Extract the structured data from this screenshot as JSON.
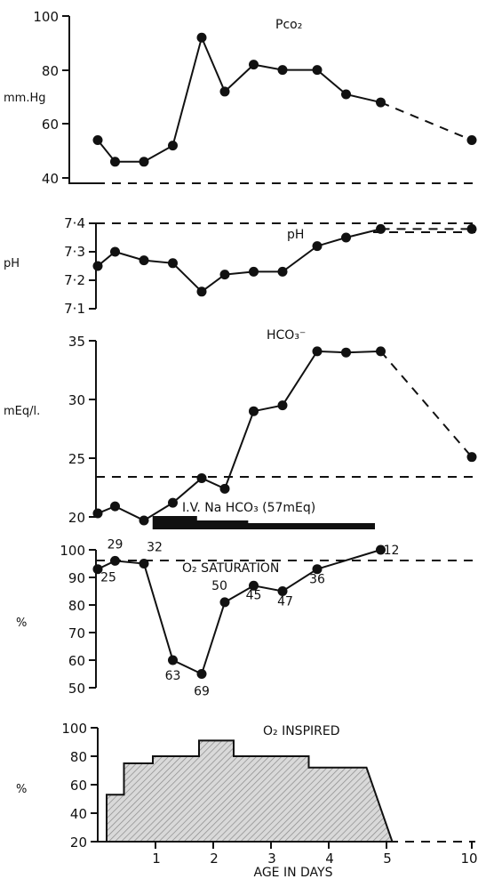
{
  "xlabel": "AGE IN DAYS",
  "x_ticks": [
    "1",
    "2",
    "3",
    "4",
    "5",
    "10"
  ],
  "chart_data": [
    {
      "type": "line",
      "title": "Pco₂",
      "ylabel": "mm.Hg",
      "ylim": [
        40,
        100
      ],
      "y_ticks": [
        "40",
        "60",
        "80",
        "100"
      ],
      "x": [
        0,
        0.3,
        0.8,
        1.3,
        1.8,
        2.2,
        2.7,
        3.2,
        3.8,
        4.3,
        4.9
      ],
      "values": [
        54,
        46,
        46,
        52,
        92,
        72,
        82,
        80,
        80,
        71,
        68
      ],
      "extrapolated_to_day_10": 54,
      "normal_level": 38
    },
    {
      "type": "line",
      "title": "pH",
      "ylim": [
        7.1,
        7.4
      ],
      "y_ticks": [
        "7·1",
        "7·2",
        "7·3",
        "7·4"
      ],
      "ylabel": "pH",
      "x": [
        0,
        0.3,
        0.8,
        1.3,
        1.8,
        2.2,
        2.7,
        3.2,
        3.8,
        4.3,
        4.9
      ],
      "values": [
        7.25,
        7.3,
        7.27,
        7.26,
        7.16,
        7.22,
        7.23,
        7.23,
        7.32,
        7.35,
        7.38
      ],
      "extrapolated_to_day_10": 7.38,
      "normal_range": [
        7.37,
        7.4
      ]
    },
    {
      "type": "line",
      "title": "HCO₃⁻",
      "ylabel": "mEq/l.",
      "ylim": [
        20,
        35
      ],
      "y_ticks": [
        "20",
        "25",
        "30",
        "35"
      ],
      "x": [
        0,
        0.3,
        0.8,
        1.3,
        1.8,
        2.2,
        2.7,
        3.2,
        3.8,
        4.3,
        4.9
      ],
      "values": [
        20.3,
        20.9,
        19.7,
        21.2,
        23.3,
        22.4,
        29,
        29.5,
        34.1,
        34,
        34.1
      ],
      "extrapolated_to_day_10": 25.1,
      "normal_level": 23.2,
      "annotation": "I.V. Na HCO₃ (57mEq)",
      "treatment_bar": {
        "start_day": 0.95,
        "end_day": 4.8
      }
    },
    {
      "type": "line",
      "title": "O₂  SATURATION",
      "ylabel": "%",
      "ylim": [
        50,
        100
      ],
      "y_ticks": [
        "50",
        "60",
        "70",
        "80",
        "90",
        "100"
      ],
      "x": [
        0,
        0.3,
        0.8,
        1.3,
        1.8,
        2.2,
        2.7,
        3.2,
        3.8,
        4.9
      ],
      "values": [
        93,
        96,
        95,
        60,
        55,
        81,
        87,
        85,
        93,
        100
      ],
      "point_labels": [
        "25",
        "29",
        "32",
        "63",
        "69",
        "50",
        "45",
        "47",
        "36",
        "12"
      ],
      "normal_level": 96
    },
    {
      "type": "area",
      "title": "O₂  INSPIRED",
      "ylabel": "%",
      "ylim": [
        20,
        100
      ],
      "y_ticks": [
        "20",
        "40",
        "60",
        "80",
        "100"
      ],
      "steps": [
        {
          "start_day": 0,
          "end_day": 0.3,
          "value": 53
        },
        {
          "start_day": 0.3,
          "end_day": 0.8,
          "value": 75
        },
        {
          "start_day": 0.8,
          "end_day": 1.6,
          "value": 80
        },
        {
          "start_day": 1.6,
          "end_day": 2.2,
          "value": 91
        },
        {
          "start_day": 2.2,
          "end_day": 3.5,
          "value": 80
        },
        {
          "start_day": 3.5,
          "end_day": 4.5,
          "value": 72
        }
      ],
      "end_day": 5.1
    }
  ]
}
